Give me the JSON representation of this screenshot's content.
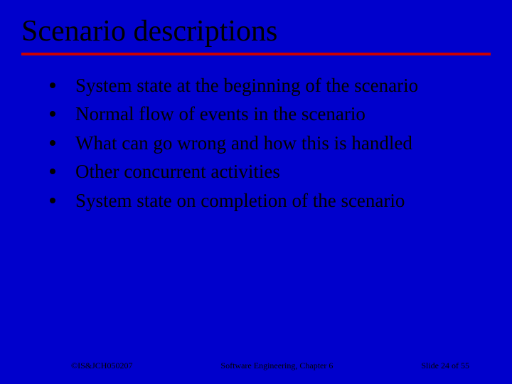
{
  "slide": {
    "title": "Scenario descriptions",
    "background_color": "#0000cc",
    "underline_color": "#cc0000",
    "text_color": "#000000",
    "title_fontsize": 42,
    "body_fontsize": 27,
    "footer_fontsize": 12,
    "bullets": [
      "System state at the beginning of the scenario",
      "Normal flow of events in the scenario",
      "What can go wrong and how this is handled",
      "Other concurrent activities",
      "System state on completion of the scenario"
    ],
    "footer": {
      "left": "©IS&JCH050207",
      "center": "Software Engineering, Chapter 6",
      "right": "Slide  24 of 55"
    }
  }
}
